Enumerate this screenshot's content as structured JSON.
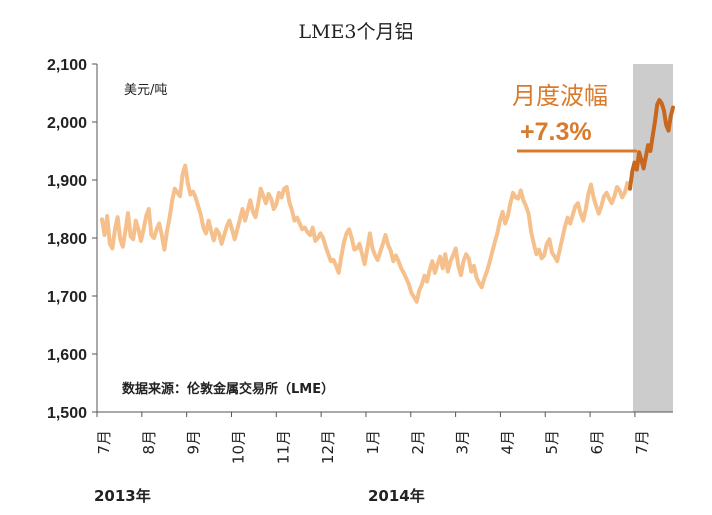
{
  "chart_data": {
    "type": "line",
    "title": "LME3个月铝",
    "unit_label": "美元/吨",
    "source_label": "数据来源：伦敦金属交易所（LME）",
    "annotation": {
      "label": "月度波幅",
      "value": "+7.3%"
    },
    "ylim": [
      1500,
      2100
    ],
    "yticks": [
      "1,500",
      "1,600",
      "1,700",
      "1,800",
      "1,900",
      "2,000",
      "2,100"
    ],
    "ytick_values": [
      1500,
      1600,
      1700,
      1800,
      1900,
      2000,
      2100
    ],
    "xtick_labels": [
      "7月",
      "8月",
      "9月",
      "10月",
      "11月",
      "12月",
      "1月",
      "2月",
      "3月",
      "4月",
      "5月",
      "6月",
      "7月"
    ],
    "years": [
      "2013年",
      "2014年"
    ],
    "colors": {
      "main_line": "#f5c08c",
      "highlight_line": "#c8671e",
      "annotation": "#d87b2c",
      "shade": "#cccccc"
    },
    "grid": false,
    "series": [
      {
        "values": [
          1832,
          1805,
          1838,
          1790,
          1782,
          1815,
          1836,
          1798,
          1785,
          1812,
          1843,
          1803,
          1798,
          1830,
          1815,
          1795,
          1815,
          1838,
          1850,
          1805,
          1800,
          1815,
          1825,
          1805,
          1780,
          1812,
          1835,
          1865,
          1885,
          1878,
          1872,
          1910,
          1925,
          1895,
          1875,
          1880,
          1870,
          1855,
          1840,
          1818,
          1808,
          1830,
          1812,
          1796,
          1815,
          1808,
          1790,
          1805,
          1820,
          1830,
          1815,
          1798,
          1815,
          1832,
          1850,
          1830,
          1848,
          1865,
          1845,
          1836,
          1858,
          1885,
          1872,
          1860,
          1876,
          1868,
          1850,
          1858,
          1878,
          1870,
          1885,
          1888,
          1862,
          1848,
          1830,
          1835,
          1825,
          1815,
          1818,
          1810,
          1805,
          1818,
          1795,
          1800,
          1808,
          1800,
          1785,
          1772,
          1760,
          1762,
          1752,
          1740,
          1768,
          1792,
          1808,
          1815,
          1800,
          1780,
          1782,
          1790,
          1772,
          1755,
          1782,
          1808,
          1782,
          1770,
          1762,
          1776,
          1790,
          1805,
          1788,
          1778,
          1760,
          1770,
          1760,
          1748,
          1740,
          1730,
          1720,
          1705,
          1698,
          1690,
          1710,
          1720,
          1735,
          1725,
          1745,
          1760,
          1740,
          1755,
          1768,
          1748,
          1772,
          1742,
          1760,
          1770,
          1782,
          1752,
          1736,
          1760,
          1772,
          1765,
          1742,
          1752,
          1732,
          1722,
          1715,
          1730,
          1742,
          1758,
          1775,
          1792,
          1808,
          1830,
          1845,
          1825,
          1838,
          1860,
          1878,
          1870,
          1868,
          1882,
          1865,
          1855,
          1842,
          1810,
          1790,
          1772,
          1780,
          1765,
          1770,
          1790,
          1798,
          1775,
          1768,
          1760,
          1780,
          1800,
          1820,
          1835,
          1825,
          1840,
          1855,
          1860,
          1842,
          1830,
          1850,
          1876,
          1892,
          1870,
          1855,
          1842,
          1855,
          1872,
          1878,
          1868,
          1860,
          1872,
          1888,
          1882,
          1870,
          1878,
          1895,
          1888
        ]
      },
      {
        "values": [
          1885,
          1915,
          1930,
          1918,
          1948,
          1935,
          1920,
          1940,
          1960,
          1950,
          1975,
          2000,
          2030,
          2038,
          2032,
          2020,
          1995,
          1985,
          2010,
          2025
        ]
      }
    ]
  }
}
